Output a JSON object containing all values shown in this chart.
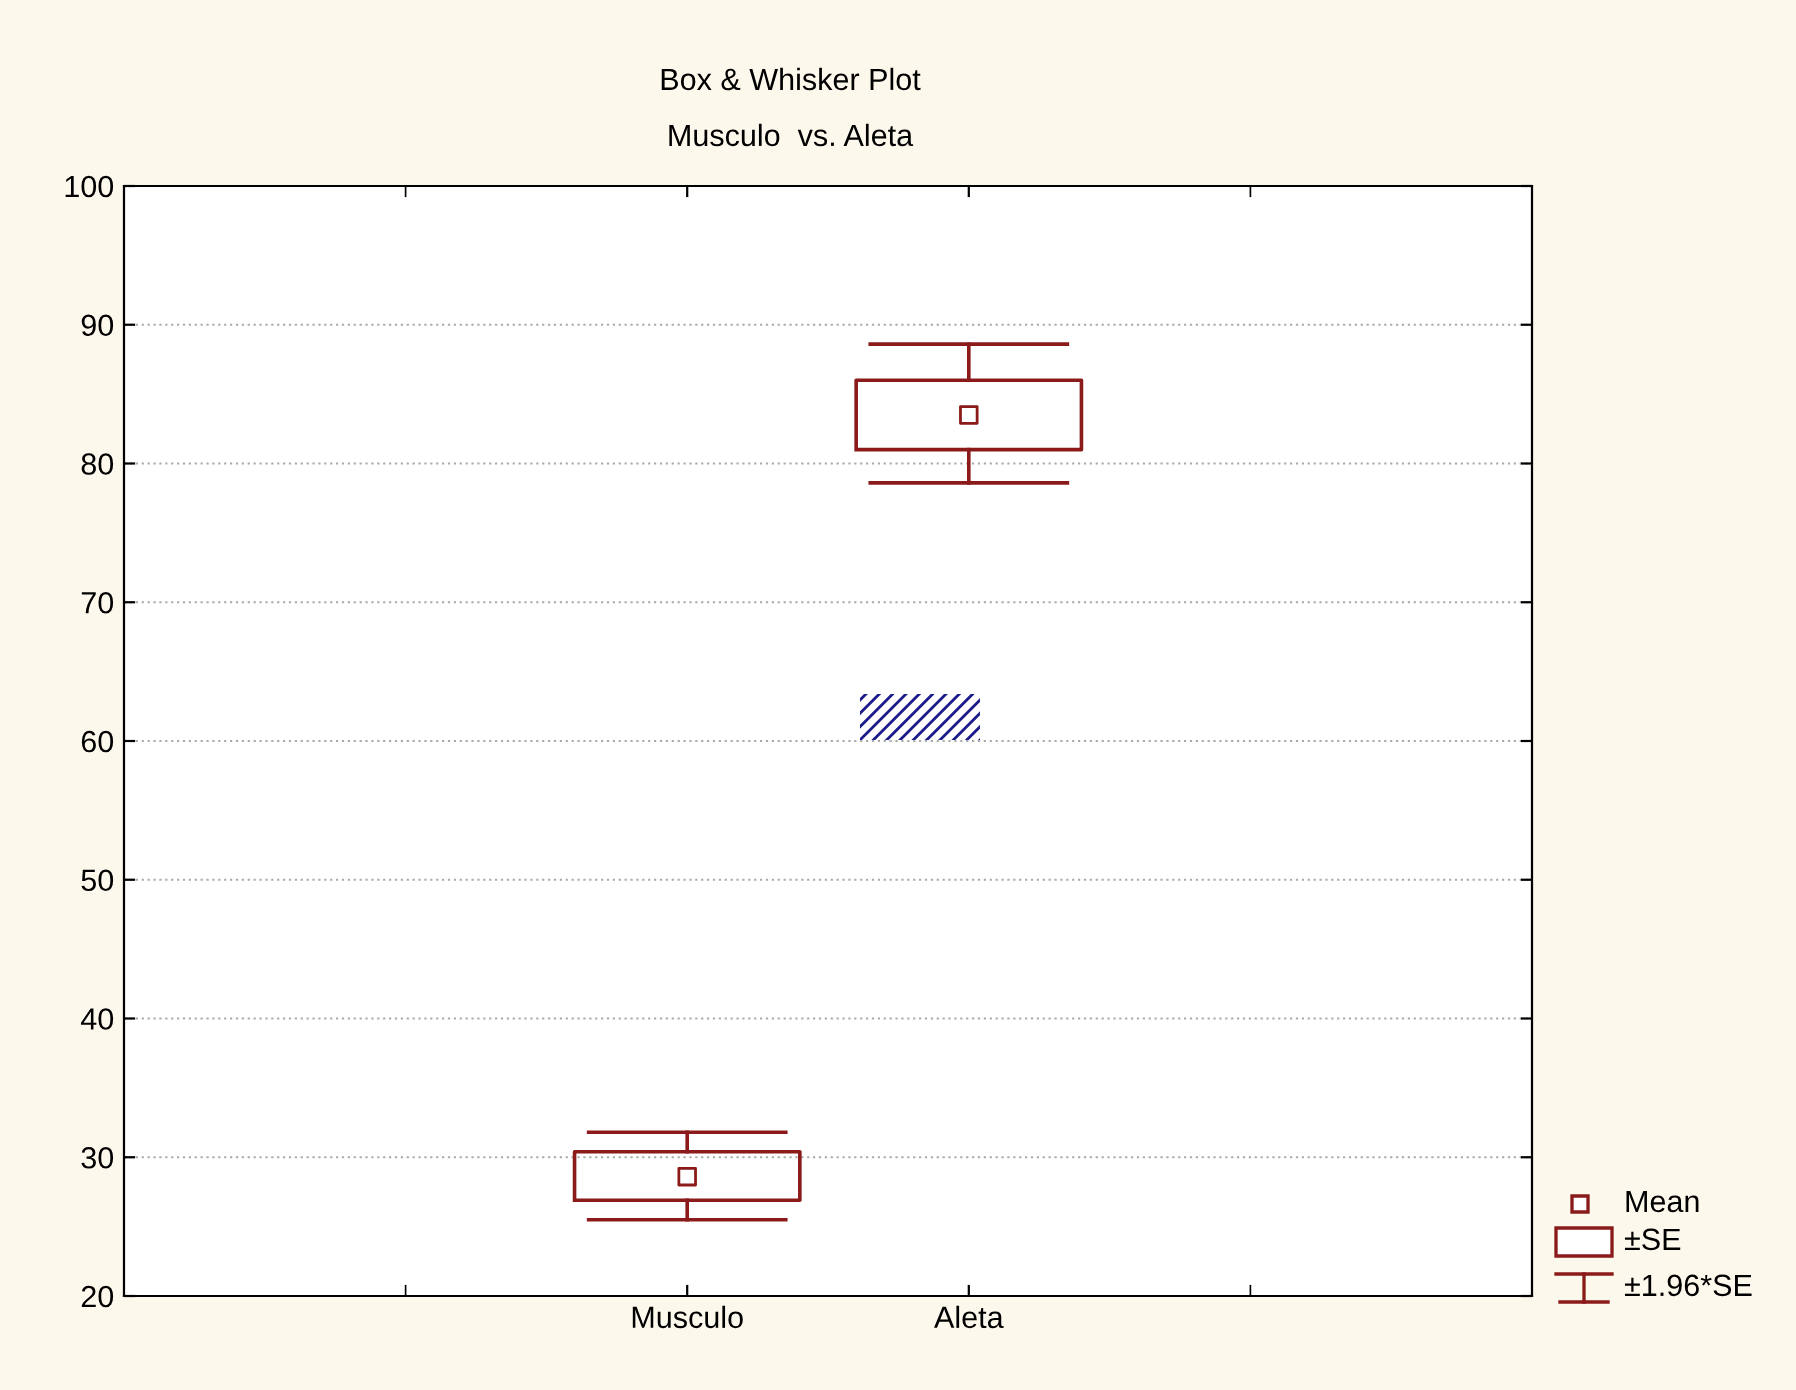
{
  "chart_data": {
    "type": "box",
    "title": "Box & Whisker Plot",
    "subtitle": "Musculo  vs. Aleta",
    "categories": [
      "Musculo",
      "Aleta"
    ],
    "boxes": [
      {
        "low": 25.5,
        "q1": 26.9,
        "median": 28.6,
        "q3": 30.4,
        "high": 31.8
      },
      {
        "low": 78.6,
        "q1": 81.0,
        "median": 83.5,
        "q3": 86.0,
        "high": 88.6
      }
    ],
    "color": "#8b1a1a",
    "ylim": [
      20,
      100
    ],
    "yticks": [
      20,
      30,
      40,
      50,
      60,
      70,
      80,
      90,
      100
    ],
    "grid": "y",
    "annotations": [
      "Mean",
      "±SE",
      "±1.96*SE"
    ]
  }
}
